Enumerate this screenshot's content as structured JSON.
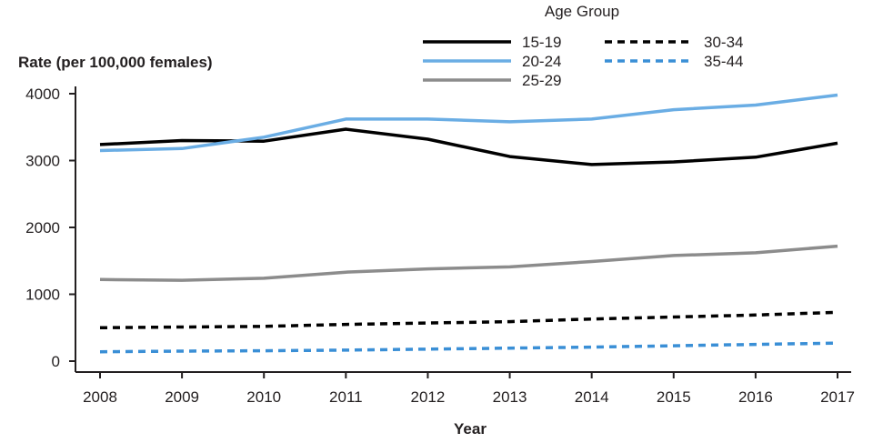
{
  "chart_data": {
    "type": "line",
    "title": "",
    "xlabel": "Year",
    "ylabel": "Rate (per 100,000 females)",
    "x": [
      2008,
      2009,
      2010,
      2011,
      2012,
      2013,
      2014,
      2015,
      2016,
      2017
    ],
    "ylim": [
      0,
      4000
    ],
    "yticks": [
      0,
      1000,
      2000,
      3000,
      4000
    ],
    "grid": false,
    "legend": {
      "title": "Age Group",
      "placement": "top-right"
    },
    "series": [
      {
        "name": "15-19",
        "color": "#000000",
        "dash": "solid",
        "values": [
          3240,
          3300,
          3290,
          3470,
          3320,
          3060,
          2940,
          2980,
          3050,
          3260
        ]
      },
      {
        "name": "20-24",
        "color": "#6aade4",
        "dash": "solid",
        "values": [
          3150,
          3180,
          3350,
          3620,
          3620,
          3580,
          3620,
          3760,
          3830,
          3980
        ]
      },
      {
        "name": "25-29",
        "color": "#8c8c8c",
        "dash": "solid",
        "values": [
          1220,
          1210,
          1240,
          1330,
          1380,
          1410,
          1490,
          1580,
          1620,
          1720
        ]
      },
      {
        "name": "30-34",
        "color": "#000000",
        "dash": "dashed",
        "values": [
          500,
          510,
          520,
          550,
          570,
          590,
          630,
          660,
          690,
          730
        ]
      },
      {
        "name": "35-44",
        "color": "#3a8fd6",
        "dash": "dashed",
        "values": [
          140,
          150,
          155,
          165,
          180,
          195,
          210,
          230,
          250,
          270
        ]
      }
    ]
  }
}
